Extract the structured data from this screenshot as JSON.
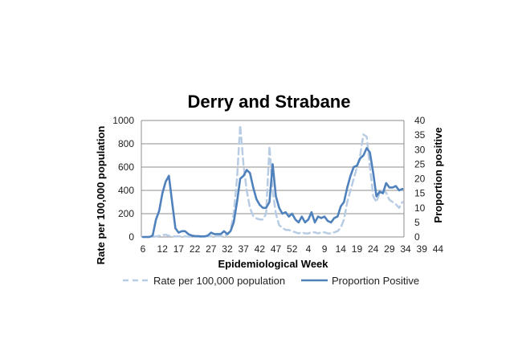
{
  "chart_data": {
    "type": "line",
    "title": "Derry and Strabane",
    "xlabel": "Epidemiological Week",
    "ylabel": "Rate per 100,000 population",
    "y2label": "Proportion positive",
    "ylim": [
      0,
      1000
    ],
    "y2lim": [
      0,
      40
    ],
    "yticks": [
      "0",
      "200",
      "400",
      "600",
      "800",
      "1000"
    ],
    "y2ticks": [
      "0",
      "5",
      "10",
      "15",
      "20",
      "25",
      "30",
      "35",
      "40"
    ],
    "xticks": [
      "6",
      "12",
      "17",
      "22",
      "27",
      "32",
      "37",
      "42",
      "47",
      "52",
      "4",
      "9",
      "14",
      "19",
      "24",
      "29",
      "34",
      "39",
      "44"
    ],
    "grid": true,
    "legend_position": "bottom",
    "series": [
      {
        "name": "Rate per 100,000 population",
        "axis": "left",
        "color": "#b8cce4",
        "style": "dashed",
        "values": [
          0,
          0,
          0,
          0,
          5,
          10,
          15,
          20,
          10,
          5,
          5,
          5,
          5,
          5,
          3,
          3,
          3,
          3,
          3,
          3,
          5,
          5,
          5,
          5,
          5,
          10,
          20,
          50,
          200,
          500,
          960,
          620,
          400,
          250,
          180,
          160,
          150,
          150,
          200,
          780,
          400,
          200,
          100,
          80,
          60,
          60,
          50,
          40,
          30,
          40,
          30,
          30,
          40,
          40,
          30,
          40,
          40,
          30,
          30,
          40,
          50,
          80,
          150,
          300,
          400,
          500,
          600,
          700,
          880,
          860,
          600,
          350,
          300,
          380,
          400,
          380,
          320,
          300,
          280,
          250,
          300
        ]
      },
      {
        "name": "Proportion Positive",
        "axis": "right",
        "color": "#4f81bd",
        "style": "solid",
        "values": [
          0,
          0,
          0,
          0.5,
          6,
          9,
          15,
          19,
          21,
          12,
          3,
          1.5,
          2,
          2,
          1,
          0.5,
          0.3,
          0.3,
          0.2,
          0.2,
          0.5,
          1.5,
          1,
          1,
          1,
          2,
          1,
          2,
          5,
          12,
          20,
          21,
          23,
          22,
          17,
          13,
          11,
          10,
          10,
          12,
          25,
          14,
          10,
          8,
          8.5,
          7,
          8,
          6,
          5,
          7,
          5,
          6,
          8.5,
          5,
          7,
          6.5,
          7,
          5.5,
          5,
          6.5,
          7,
          10.5,
          12,
          17,
          21,
          24,
          24.5,
          27,
          28,
          30.5,
          29,
          22,
          14,
          15.5,
          15,
          18.5,
          17,
          17,
          17.5,
          16,
          16.5
        ]
      }
    ]
  }
}
